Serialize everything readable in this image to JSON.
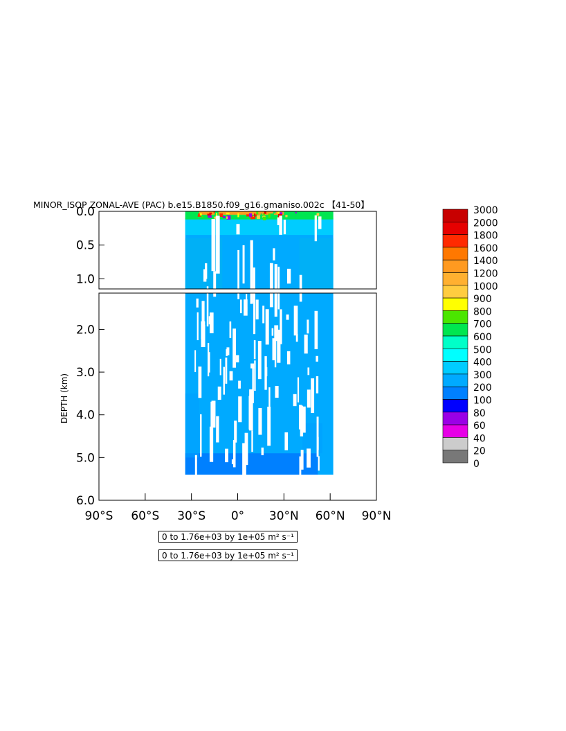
{
  "title": "MINOR_ISOP ZONAL-AVE (PAC) b.e15.B1850.f09_g16.gmaniso.002c 【41-50】",
  "info_lines": [
    "0 to 1.76e+03 by 1e+05 m² s⁻¹",
    "0 to 1.76e+03 by 1e+05 m² s⁻¹"
  ],
  "chart_data": {
    "type": "heatmap",
    "title": "MINOR_ISOP ZONAL-AVE (PAC) b.e15.B1850.f09_g16.gmaniso.002c 【41-50】",
    "xlabel": "",
    "ylabel": "DEPTH (km)",
    "xlim": [
      -90,
      90
    ],
    "ylim_upper_panel": [
      0.0,
      1.15
    ],
    "ylim_lower_panel": [
      1.15,
      6.0
    ],
    "x_ticks": [
      {
        "value": -90,
        "label": "90°S"
      },
      {
        "value": -60,
        "label": "60°S"
      },
      {
        "value": -30,
        "label": "30°S"
      },
      {
        "value": 0,
        "label": "0°"
      },
      {
        "value": 30,
        "label": "30°N"
      },
      {
        "value": 60,
        "label": "60°N"
      },
      {
        "value": 90,
        "label": "90°N"
      }
    ],
    "y_ticks_upper": [
      {
        "value": 0.0,
        "label": "0.0"
      },
      {
        "value": 0.5,
        "label": "0.5"
      },
      {
        "value": 1.0,
        "label": "1.0"
      }
    ],
    "y_ticks_lower": [
      {
        "value": 2.0,
        "label": "2.0"
      },
      {
        "value": 3.0,
        "label": "3.0"
      },
      {
        "value": 4.0,
        "label": "4.0"
      },
      {
        "value": 5.0,
        "label": "5.0"
      },
      {
        "value": 6.0,
        "label": "6.0"
      }
    ],
    "colorbar": {
      "levels": [
        "3000",
        "2000",
        "1800",
        "1600",
        "1400",
        "1200",
        "1000",
        "900",
        "800",
        "700",
        "600",
        "500",
        "400",
        "300",
        "200",
        "100",
        "80",
        "60",
        "40",
        "20",
        "0"
      ],
      "colors": [
        "#c80000",
        "#e60000",
        "#ff2a00",
        "#ff7800",
        "#ff9a20",
        "#ffb030",
        "#ffcc40",
        "#ffff00",
        "#4be600",
        "#00e650",
        "#00ffc8",
        "#00ffff",
        "#00ccff",
        "#00aaff",
        "#0080ff",
        "#0000ff",
        "#9b00e6",
        "#e600e6",
        "#cccccc",
        "#787878"
      ]
    },
    "regions": [
      {
        "name": "basin-200-300",
        "lat": [
          -34,
          62
        ],
        "depth": [
          0.1,
          5.4
        ],
        "color": "#00aaff"
      },
      {
        "name": "deep-100-200",
        "lat": [
          -34,
          52
        ],
        "depth": [
          4.9,
          5.4
        ],
        "color": "#0080ff"
      },
      {
        "name": "surface-300-500",
        "lat": [
          -34,
          62
        ],
        "depth": [
          0.0,
          0.35
        ],
        "color": "#00ccff"
      },
      {
        "name": "surface-500-700",
        "lat": [
          -34,
          62
        ],
        "depth": [
          0.0,
          0.12
        ],
        "color": "#00e650"
      },
      {
        "name": "surface-1000-1600",
        "lat": [
          -25,
          30
        ],
        "depth": [
          0.0,
          0.05
        ],
        "color": "#ff9a20"
      }
    ]
  }
}
